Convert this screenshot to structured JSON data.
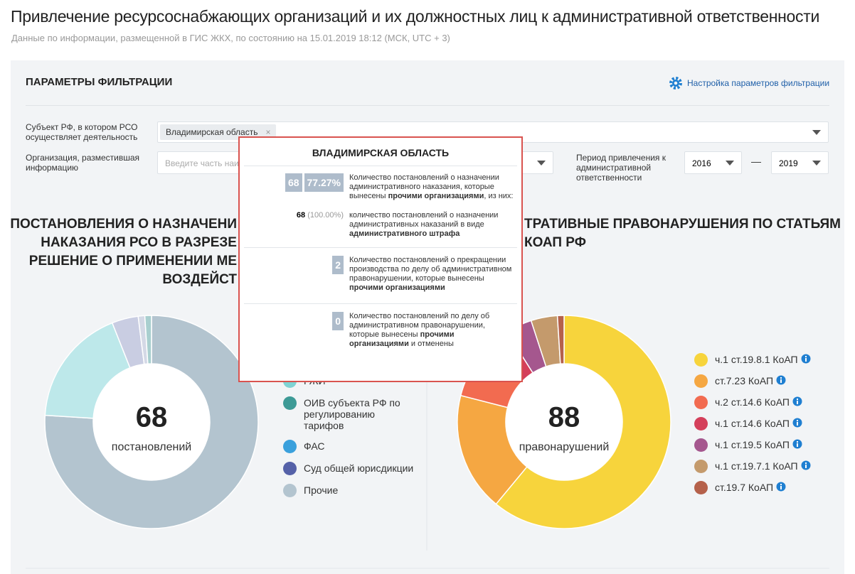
{
  "header": {
    "title": "Привлечение ресурсоснабжающих организаций и их должностных лиц к административной ответственности",
    "subtitle": "Данные по информации, размещенной в ГИС ЖКХ, по состоянию на 15.01.2019 18:12 (МСК, UTC + 3)"
  },
  "filters": {
    "title": "ПАРАМЕТРЫ ФИЛЬТРАЦИИ",
    "settings_link": "Настройка параметров фильтрации",
    "subject_label": "Субъект РФ, в котором РСО осуществляет деятельность",
    "subject_value": "Владимирская область",
    "org_label": "Организация, разместившая информацию",
    "org_placeholder": "Введите часть наи",
    "period_label": "Период привлечения к административной ответственности",
    "period_from": "2016",
    "period_dash": "—",
    "period_to": "2019"
  },
  "left_chart": {
    "title_lines": [
      "ПОСТАНОВЛЕНИЯ О НАЗНАЧЕНИ",
      "НАКАЗАНИЯ РСО В РАЗРЕЗЕ",
      "РЕШЕНИЕ О ПРИМЕНЕНИИ МЕ",
      "ВОЗДЕЙСТ"
    ],
    "center_value": "68",
    "center_label": "постановлений",
    "segments": [
      {
        "color": "#b3c4cf",
        "value": 76
      },
      {
        "color": "#bde8ea",
        "value": 18
      },
      {
        "color": "#c9cde2",
        "value": 4
      },
      {
        "color": "#d4d9e6",
        "value": 1
      },
      {
        "color": "#a9cfcf",
        "value": 1
      }
    ],
    "legend": [
      {
        "label": "ГЖИ",
        "color": "#7fd3d3"
      },
      {
        "label": "ОИВ субъекта РФ по регулированию тарифов",
        "color": "#3d9a96"
      },
      {
        "label": "ФАС",
        "color": "#3aa0dc"
      },
      {
        "label": "Суд общей юрисдикции",
        "color": "#5561a8"
      },
      {
        "label": "Прочие",
        "color": "#b3c4cf"
      }
    ]
  },
  "right_chart": {
    "title_lines": [
      "ТРАТИВНЫЕ ПРАВОНАРУШЕНИЯ ПО СТАТЬЯМ",
      "КОАП РФ"
    ],
    "center_value": "88",
    "center_label": "правонарушений",
    "items": [
      {
        "label": "ч.1 ст.19.8.1 КоАП",
        "color": "#f7d43c",
        "value": 61
      },
      {
        "label": "ст.7.23 КоАП",
        "color": "#f5a742",
        "value": 18
      },
      {
        "label": "ч.2 ст.14.6 КоАП",
        "color": "#f26b50",
        "value": 8
      },
      {
        "label": "ч.1 ст.14.6 КоАП",
        "color": "#d43f5a",
        "value": 4
      },
      {
        "label": "ч.1 ст.19.5 КоАП",
        "color": "#a5578e",
        "value": 4
      },
      {
        "label": "ч.1 ст.19.7.1 КоАП",
        "color": "#c49a6c",
        "value": 4
      },
      {
        "label": "ст.19.7 КоАП",
        "color": "#b5614b",
        "value": 1
      }
    ]
  },
  "tooltip": {
    "title": "ВЛАДИМИРСКАЯ ОБЛАСТЬ",
    "block1": {
      "count": "68",
      "percent": "77.27%",
      "text": [
        "Количество постановлений о назначении административного наказания, которые вынесены ",
        "прочими организациями",
        ", из них:"
      ]
    },
    "sub": {
      "count": "68",
      "percent": "(100.00%)",
      "text": [
        "количество постановлений о назначении административных наказаний в виде ",
        "административного штрафа"
      ]
    },
    "block2": {
      "count": "2",
      "text": [
        "Количество постановлений о прекращении производства по делу об административном правонарушении, которые вынесены ",
        "прочими организациями"
      ]
    },
    "block3": {
      "count": "0",
      "text": [
        "Количество постановлений по делу об административном правонарушении, которые вынесены ",
        "прочими организациями",
        " и отменены"
      ]
    }
  }
}
